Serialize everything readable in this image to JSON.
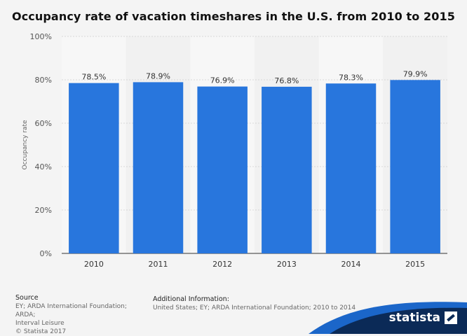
{
  "title": "Occupancy rate of vacation timeshares in the U.S. from 2010 to 2015",
  "chart_data": {
    "type": "bar",
    "categories": [
      "2010",
      "2011",
      "2012",
      "2013",
      "2014",
      "2015"
    ],
    "values": [
      78.5,
      78.9,
      76.9,
      76.8,
      78.3,
      79.9
    ],
    "value_labels": [
      "78.5%",
      "78.9%",
      "76.9%",
      "76.8%",
      "78.3%",
      "79.9%"
    ],
    "ylabel": "Occupancy rate",
    "yticks": [
      "0%",
      "20%",
      "40%",
      "60%",
      "80%",
      "100%"
    ],
    "ytick_values": [
      0,
      20,
      40,
      60,
      80,
      100
    ],
    "ylim": [
      0,
      100
    ],
    "bar_color": "#2876dd",
    "grid": true
  },
  "footer": {
    "source_heading": "Source",
    "source_lines": [
      "EY; ARDA International Foundation; ARDA;",
      "Interval Leisure",
      "© Statista 2017"
    ],
    "info_heading": "Additional Information:",
    "info_text": "United States; EY; ARDA International Foundation; 2010 to 2014"
  },
  "brand": {
    "name": "statista",
    "color": "#0b2a57",
    "accent": "#1b66c9"
  }
}
